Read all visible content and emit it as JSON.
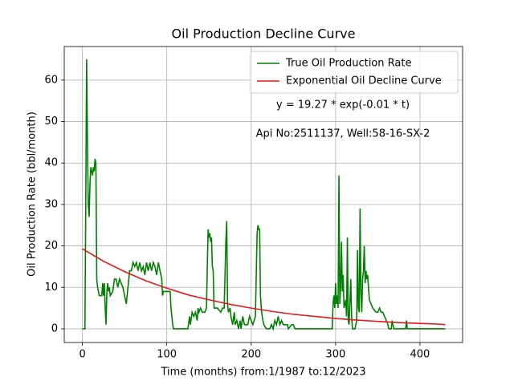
{
  "chart_data": {
    "type": "line",
    "title": "Oil Production Decline Curve",
    "xlabel": "Time (months) from:1/1987 to:12/2023",
    "ylabel": "Oil Production Rate (bbl/month)",
    "annotations": [
      "y = 19.27 * exp(-0.01 * t)",
      "Api No:2511137, Well:58-16-SX-2"
    ],
    "xlim": [
      -21.5,
      450.5
    ],
    "xticks": [
      0,
      100,
      200,
      300,
      400
    ],
    "ylim": [
      -3.3,
      68.1
    ],
    "yticks": [
      0,
      10,
      20,
      30,
      40,
      50,
      60
    ],
    "grid": true,
    "legend": "upper right",
    "series": [
      {
        "name": "True Oil Production Rate",
        "color": "#008000",
        "x": [
          0,
          3,
          4,
          5,
          6,
          7,
          8,
          9,
          10,
          11,
          12,
          13,
          14,
          15,
          16,
          17,
          18,
          20,
          23,
          24,
          25,
          26,
          27,
          28,
          29,
          30,
          31,
          32,
          33,
          36,
          38,
          40,
          42,
          44,
          46,
          48,
          50,
          52,
          54,
          56,
          58,
          60,
          62,
          64,
          66,
          68,
          70,
          72,
          74,
          76,
          78,
          80,
          82,
          84,
          86,
          88,
          90,
          92,
          94,
          95,
          96,
          100,
          104,
          105,
          107,
          108,
          125,
          127,
          128,
          130,
          132,
          134,
          136,
          137,
          138,
          140,
          142,
          145,
          147,
          148,
          149,
          150,
          151,
          152,
          153,
          154,
          155,
          156,
          160,
          164,
          166,
          168,
          170,
          171,
          172,
          173,
          175,
          176,
          178,
          180,
          181,
          183,
          185,
          187,
          188,
          190,
          192,
          196,
          198,
          200,
          202,
          205,
          207,
          208,
          209,
          210,
          211,
          212,
          213,
          215,
          218,
          222,
          224,
          226,
          228,
          230,
          232,
          234,
          236,
          238,
          240,
          243,
          244,
          248,
          250,
          252,
          296,
          297,
          298,
          299,
          300,
          301,
          302,
          303,
          304,
          305,
          306,
          307,
          308,
          309,
          310,
          312,
          313,
          314,
          315,
          316,
          318,
          319,
          320,
          323,
          325,
          326,
          327,
          328,
          329,
          330,
          331,
          332,
          333,
          334,
          335,
          336,
          337,
          338,
          339,
          340,
          342,
          344,
          348,
          350,
          352,
          354,
          356,
          358,
          360,
          362,
          363,
          366,
          367,
          369,
          383,
          384,
          385,
          430
        ],
        "values": [
          0,
          0,
          30,
          65,
          45,
          30,
          27,
          35,
          39,
          38,
          37,
          39,
          38,
          41,
          40,
          12,
          10,
          8,
          8,
          11,
          8,
          11,
          5,
          1,
          9,
          11,
          9,
          10,
          8,
          9,
          12,
          12,
          10,
          12,
          11,
          10,
          8,
          6,
          10,
          14,
          14,
          16,
          15,
          16,
          14,
          16,
          14,
          15,
          13,
          16,
          14,
          16,
          14,
          16,
          15,
          13,
          16,
          14,
          12,
          8,
          9,
          9,
          9,
          5,
          1,
          0,
          0,
          3,
          1,
          4,
          3,
          4,
          2,
          5,
          4,
          5,
          4,
          4,
          5,
          15,
          24,
          22,
          23,
          21,
          22,
          15,
          14,
          5,
          5,
          4,
          5,
          5,
          21,
          26,
          6,
          4,
          5,
          3,
          1,
          4,
          1,
          2,
          0,
          2,
          0,
          3,
          1,
          1,
          3,
          2,
          1,
          3,
          23,
          25,
          24,
          24,
          8,
          5,
          3,
          1,
          0,
          0,
          1,
          0,
          2,
          1,
          3,
          1,
          2,
          1,
          1,
          1,
          0,
          1,
          1,
          0,
          0,
          6,
          8,
          5,
          11,
          6,
          8,
          5,
          37,
          6,
          10,
          21,
          9,
          13,
          5,
          7,
          3,
          22,
          2,
          1,
          12,
          3,
          0,
          0,
          2,
          19,
          5,
          4,
          29,
          9,
          4,
          12,
          14,
          20,
          11,
          14,
          12,
          13,
          10,
          7,
          6,
          5,
          4,
          4,
          5,
          4,
          4,
          3,
          2,
          1,
          0,
          0,
          2,
          0,
          0,
          2,
          0,
          0
        ]
      },
      {
        "name": "Exponential Oil Decline Curve",
        "color": "#e41a1c",
        "x": [
          0,
          25,
          50,
          75,
          100,
          125,
          150,
          175,
          200,
          225,
          250,
          275,
          300,
          325,
          350,
          375,
          400,
          425,
          430
        ],
        "values": [
          19.3,
          16.3,
          13.8,
          11.6,
          9.8,
          8.2,
          7.0,
          5.9,
          5.0,
          4.2,
          3.5,
          3.0,
          2.5,
          2.1,
          1.8,
          1.5,
          1.3,
          1.1,
          1.0
        ]
      }
    ]
  }
}
